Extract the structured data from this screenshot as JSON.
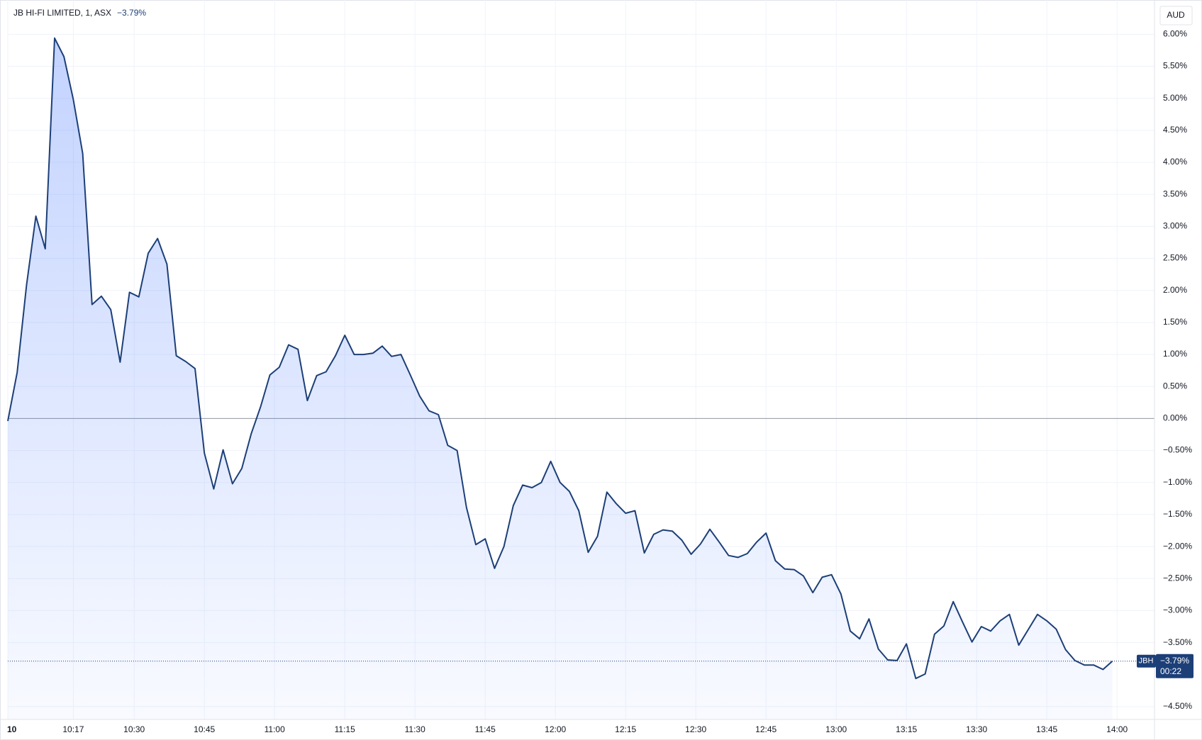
{
  "chart_data": {
    "type": "area",
    "title": "JB HI-FI LIMITED, 1, ASX",
    "currency": "AUD",
    "last": {
      "value": -3.79,
      "label": "−3.79%",
      "symbol": "JBH",
      "countdown": "00:22"
    },
    "xlim": [
      "10:03",
      "14:08"
    ],
    "ylim": [
      -4.7,
      6.48
    ],
    "grid": true,
    "xticks": [
      {
        "value": "10:03",
        "label": "10"
      },
      "10:17",
      "10:30",
      "10:45",
      "11:00",
      "11:15",
      "11:30",
      "11:45",
      "12:00",
      "12:15",
      "12:30",
      "12:45",
      "13:00",
      "13:15",
      "13:30",
      "13:45",
      "14:00"
    ],
    "yticks": [
      {
        "value": 6,
        "label": "6.00%"
      },
      {
        "value": 5.5,
        "label": "5.50%"
      },
      {
        "value": 5,
        "label": "5.00%"
      },
      {
        "value": 4.5,
        "label": "4.50%"
      },
      {
        "value": 4,
        "label": "4.00%"
      },
      {
        "value": 3.5,
        "label": "3.50%"
      },
      {
        "value": 3,
        "label": "3.00%"
      },
      {
        "value": 2.5,
        "label": "2.50%"
      },
      {
        "value": 2,
        "label": "2.00%"
      },
      {
        "value": 1.5,
        "label": "1.50%"
      },
      {
        "value": 1,
        "label": "1.00%"
      },
      {
        "value": 0.5,
        "label": "0.50%"
      },
      {
        "value": 0,
        "label": "0.00%"
      },
      {
        "value": -0.5,
        "label": "−0.50%"
      },
      {
        "value": -1,
        "label": "−1.00%"
      },
      {
        "value": -1.5,
        "label": "−1.50%"
      },
      {
        "value": -2,
        "label": "−2.00%"
      },
      {
        "value": -2.5,
        "label": "−2.50%"
      },
      {
        "value": -3,
        "label": "−3.00%"
      },
      {
        "value": -3.5,
        "label": "−3.50%"
      },
      {
        "value": -4.5,
        "label": "−4.50%"
      }
    ],
    "x": [
      "10:03",
      "10:05",
      "10:07",
      "10:09",
      "10:11",
      "10:13",
      "10:15",
      "10:17",
      "10:19",
      "10:21",
      "10:23",
      "10:25",
      "10:27",
      "10:29",
      "10:31",
      "10:33",
      "10:35",
      "10:37",
      "10:39",
      "10:41",
      "10:43",
      "10:45",
      "10:47",
      "10:49",
      "10:51",
      "10:53",
      "10:55",
      "10:57",
      "10:59",
      "11:01",
      "11:03",
      "11:05",
      "11:07",
      "11:09",
      "11:11",
      "11:13",
      "11:15",
      "11:17",
      "11:19",
      "11:21",
      "11:23",
      "11:25",
      "11:27",
      "11:29",
      "11:31",
      "11:33",
      "11:35",
      "11:37",
      "11:39",
      "11:41",
      "11:43",
      "11:45",
      "11:47",
      "11:49",
      "11:51",
      "11:53",
      "11:55",
      "11:57",
      "11:59",
      "12:01",
      "12:03",
      "12:05",
      "12:07",
      "12:09",
      "12:11",
      "12:13",
      "12:15",
      "12:17",
      "12:19",
      "12:21",
      "12:23",
      "12:25",
      "12:27",
      "12:29",
      "12:31",
      "12:33",
      "12:35",
      "12:37",
      "12:39",
      "12:41",
      "12:43",
      "12:45",
      "12:47",
      "12:49",
      "12:51",
      "12:53",
      "12:55",
      "12:57",
      "12:59",
      "13:01",
      "13:03",
      "13:05",
      "13:07",
      "13:09",
      "13:11",
      "13:13",
      "13:15",
      "13:17",
      "13:19",
      "13:21",
      "13:23",
      "13:25",
      "13:27",
      "13:29",
      "13:31",
      "13:33",
      "13:35",
      "13:37",
      "13:39",
      "13:41",
      "13:43",
      "13:45",
      "13:47",
      "13:49",
      "13:51",
      "13:53",
      "13:55",
      "13:57",
      "13:59"
    ],
    "series": [
      {
        "name": "JBH",
        "color": "#1c3f78",
        "values": [
          -0.04,
          0.72,
          2.08,
          3.16,
          2.65,
          5.94,
          5.65,
          4.98,
          4.14,
          1.78,
          1.91,
          1.7,
          0.88,
          1.97,
          1.9,
          2.58,
          2.81,
          2.41,
          0.98,
          0.89,
          0.78,
          -0.54,
          -1.1,
          -0.49,
          -1.02,
          -0.78,
          -0.24,
          0.18,
          0.68,
          0.8,
          1.15,
          1.08,
          0.28,
          0.67,
          0.73,
          0.98,
          1.3,
          1.0,
          1.0,
          1.02,
          1.13,
          0.97,
          1.0,
          0.68,
          0.35,
          0.12,
          0.06,
          -0.42,
          -0.5,
          -1.39,
          -1.97,
          -1.88,
          -2.34,
          -2.0,
          -1.36,
          -1.04,
          -1.08,
          -1.0,
          -0.67,
          -1.0,
          -1.14,
          -1.44,
          -2.09,
          -1.84,
          -1.15,
          -1.33,
          -1.48,
          -1.44,
          -2.1,
          -1.81,
          -1.74,
          -1.76,
          -1.9,
          -2.12,
          -1.96,
          -1.73,
          -1.93,
          -2.14,
          -2.17,
          -2.11,
          -1.93,
          -1.79,
          -2.22,
          -2.35,
          -2.36,
          -2.46,
          -2.72,
          -2.48,
          -2.44,
          -2.74,
          -3.32,
          -3.44,
          -3.13,
          -3.6,
          -3.77,
          -3.78,
          -3.52,
          -4.06,
          -3.99,
          -3.37,
          -3.24,
          -2.86,
          -3.18,
          -3.49,
          -3.25,
          -3.32,
          -3.16,
          -3.06,
          -3.54,
          -3.3,
          -3.06,
          -3.16,
          -3.29,
          -3.61,
          -3.78,
          -3.85,
          -3.85,
          -3.92,
          -3.79
        ]
      }
    ]
  }
}
